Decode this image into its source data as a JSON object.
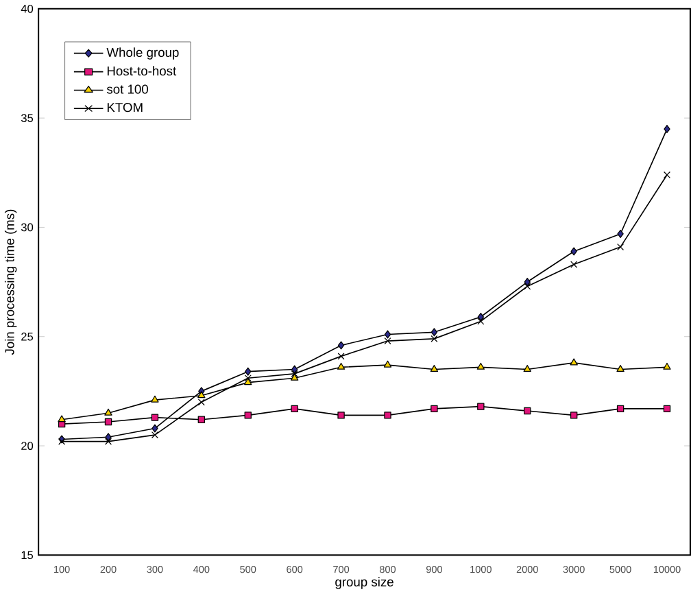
{
  "chart_data": {
    "type": "line",
    "xlabel": "group size",
    "ylabel": "Join processing time (ms)",
    "categories": [
      "100",
      "200",
      "300",
      "400",
      "500",
      "600",
      "700",
      "800",
      "900",
      "1000",
      "2000",
      "3000",
      "5000",
      "10000"
    ],
    "series": [
      {
        "name": "Whole group",
        "color": "#2a2a8a",
        "marker": "diamond",
        "values": [
          20.3,
          20.4,
          20.8,
          22.5,
          23.4,
          23.5,
          24.6,
          25.1,
          25.2,
          25.9,
          27.5,
          28.9,
          29.7,
          34.5
        ]
      },
      {
        "name": "Host-to-host",
        "color": "#e0147a",
        "marker": "square",
        "values": [
          21.0,
          21.1,
          21.3,
          21.2,
          21.4,
          21.7,
          21.4,
          21.4,
          21.7,
          21.8,
          21.6,
          21.4,
          21.7,
          21.7
        ]
      },
      {
        "name": "sot 100",
        "color": "#f5d000",
        "marker": "triangle",
        "values": [
          21.2,
          21.5,
          22.1,
          22.3,
          22.9,
          23.1,
          23.6,
          23.7,
          23.5,
          23.6,
          23.5,
          23.8,
          23.5,
          23.6
        ]
      },
      {
        "name": "KTOM",
        "color": "#000000",
        "marker": "cross",
        "values": [
          20.2,
          20.2,
          20.5,
          22.0,
          23.1,
          23.3,
          24.1,
          24.8,
          24.9,
          25.7,
          27.3,
          28.3,
          29.1,
          32.4
        ]
      }
    ],
    "ylim": [
      15,
      40
    ],
    "yticks": [
      15,
      20,
      25,
      30,
      35,
      40
    ],
    "legend": "top left",
    "grid": false
  }
}
